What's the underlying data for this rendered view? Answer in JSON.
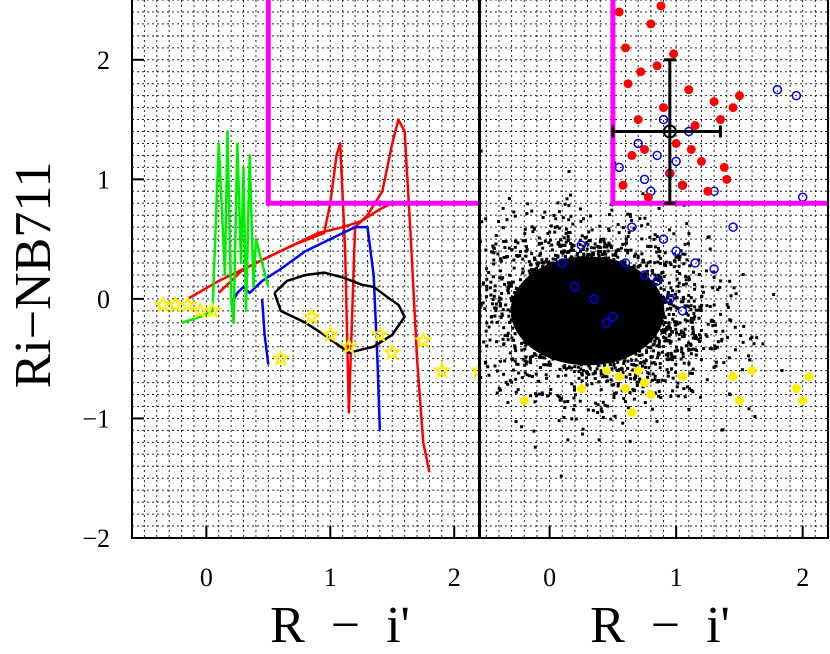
{
  "chart_data": [
    {
      "type": "line",
      "panel": "left",
      "xlabel": "R - i'",
      "ylabel": "Ri-NB711",
      "xlim": [
        -0.6,
        2.2
      ],
      "ylim": [
        -2,
        2.5
      ],
      "xticks": [
        "0",
        "1",
        "2"
      ],
      "yticks": [
        "-2",
        "-1",
        "0",
        "1",
        "2"
      ],
      "grid": true,
      "selection_box": {
        "x_min": 0.5,
        "y_min": 0.8,
        "color": "#ff00ff"
      },
      "series": [
        {
          "kind": "line",
          "color": "#ff0000",
          "x": [
            -0.15,
            0.1,
            0.4,
            0.7,
            0.95,
            1.0,
            1.05,
            1.08,
            1.12,
            1.15,
            1.2,
            1.3,
            1.42,
            1.5,
            1.55,
            1.6,
            1.65,
            1.7,
            1.75,
            1.8
          ],
          "y": [
            0.0,
            0.15,
            0.3,
            0.45,
            0.55,
            0.8,
            1.2,
            1.3,
            0.4,
            -0.95,
            0.6,
            0.7,
            0.9,
            1.3,
            1.5,
            1.4,
            0.5,
            -0.5,
            -1.2,
            -1.45
          ]
        },
        {
          "kind": "line",
          "color": "#ff0000",
          "x": [
            0.1,
            0.3,
            0.5,
            0.7,
            0.9,
            1.1,
            1.25,
            1.4,
            1.5
          ],
          "y": [
            0.05,
            0.25,
            0.35,
            0.45,
            0.55,
            0.6,
            0.65,
            0.75,
            0.8
          ]
        },
        {
          "kind": "line",
          "color": "#0000ff",
          "x": [
            0.2,
            0.25,
            0.3,
            0.35,
            0.45,
            0.6,
            0.8,
            1.0,
            1.2,
            1.3,
            1.35,
            1.38,
            1.4
          ],
          "y": [
            -0.05,
            0.05,
            0.1,
            0.05,
            0.15,
            0.25,
            0.4,
            0.5,
            0.6,
            0.6,
            0.2,
            -0.5,
            -1.1
          ]
        },
        {
          "kind": "line",
          "color": "#0000ff",
          "x": [
            0.45,
            0.47,
            0.5
          ],
          "y": [
            0.0,
            -0.3,
            -0.55
          ]
        },
        {
          "kind": "line",
          "color": "#00ee00",
          "x": [
            -0.2,
            -0.05,
            0.05,
            0.1,
            0.15,
            0.17,
            0.2,
            0.22,
            0.25,
            0.28,
            0.3,
            0.32,
            0.35,
            0.38,
            0.4,
            0.45,
            0.5
          ],
          "y": [
            -0.2,
            -0.15,
            -0.1,
            1.3,
            0.2,
            1.4,
            0.0,
            -0.2,
            1.3,
            0.3,
            1.1,
            -0.1,
            1.2,
            0.1,
            0.5,
            0.3,
            0.1
          ]
        },
        {
          "kind": "line",
          "color": "#000000",
          "x": [
            0.55,
            0.65,
            0.8,
            0.95,
            1.1,
            1.25,
            1.35,
            1.48,
            1.55,
            1.6,
            1.5,
            1.35,
            1.15,
            0.95,
            0.8,
            0.6,
            0.55
          ],
          "y": [
            0.05,
            0.15,
            0.2,
            0.22,
            0.18,
            0.12,
            0.1,
            0.0,
            -0.05,
            -0.15,
            -0.3,
            -0.4,
            -0.45,
            -0.3,
            -0.2,
            -0.1,
            0.05
          ]
        },
        {
          "kind": "stars",
          "color": "#ffee00",
          "x": [
            -0.35,
            -0.25,
            -0.15,
            -0.05,
            0.05,
            0.6,
            0.85,
            1.0,
            1.15,
            1.4,
            1.5,
            1.75,
            1.9,
            2.2
          ],
          "y": [
            -0.05,
            -0.05,
            -0.05,
            -0.1,
            -0.1,
            -0.5,
            -0.15,
            -0.3,
            -0.4,
            -0.3,
            -0.45,
            -0.35,
            -0.6,
            -0.6
          ]
        }
      ]
    },
    {
      "type": "scatter",
      "panel": "right",
      "xlabel": "R - i'",
      "xlim": [
        -0.55,
        2.2
      ],
      "ylim": [
        -2,
        2.5
      ],
      "xticks": [
        "0",
        "1",
        "2"
      ],
      "grid": true,
      "selection_box": {
        "x_min": 0.5,
        "y_min": 0.8,
        "color": "#ff00ff"
      },
      "error_bar": {
        "x": 0.95,
        "y": 1.4,
        "x_low": 0.5,
        "x_high": 1.35,
        "y_low": 0.8,
        "y_high": 2.0
      },
      "series": [
        {
          "kind": "cloud",
          "color": "#000000",
          "center_x": 0.35,
          "center_y": -0.1,
          "spread_x": 0.45,
          "spread_y": 0.35
        },
        {
          "kind": "circles",
          "color": "#0000ff",
          "x": [
            0.55,
            0.7,
            0.75,
            0.8,
            0.85,
            0.9,
            0.95,
            1.0,
            1.05,
            1.1,
            0.65,
            0.9,
            1.3,
            1.45,
            1.8,
            1.95,
            2.0,
            0.1,
            0.2,
            0.35,
            0.5,
            0.6,
            0.75,
            0.85,
            1.0,
            1.15,
            1.3,
            0.95,
            1.05,
            0.45,
            0.25
          ],
          "y": [
            1.1,
            1.3,
            1.0,
            0.9,
            1.2,
            1.5,
            1.05,
            1.15,
            0.95,
            1.4,
            0.6,
            0.5,
            0.9,
            0.6,
            1.75,
            1.7,
            0.85,
            0.3,
            0.1,
            0.0,
            -0.15,
            0.3,
            0.2,
            0.15,
            0.4,
            0.3,
            0.25,
            0.0,
            -0.1,
            -0.2,
            0.45
          ]
        },
        {
          "kind": "dots",
          "color": "#ff0000",
          "x": [
            0.55,
            0.6,
            0.62,
            0.7,
            0.75,
            0.8,
            0.85,
            0.9,
            0.95,
            1.0,
            1.05,
            1.1,
            1.15,
            1.2,
            1.25,
            1.3,
            1.35,
            1.4,
            1.5,
            0.65,
            0.72,
            0.78,
            0.88,
            1.45,
            0.58,
            0.98,
            1.12,
            1.38
          ],
          "y": [
            2.4,
            2.1,
            1.8,
            1.5,
            1.25,
            2.3,
            1.95,
            1.6,
            1.05,
            1.3,
            0.95,
            1.75,
            1.45,
            1.15,
            0.9,
            1.65,
            1.5,
            1.0,
            1.7,
            1.2,
            1.9,
            0.85,
            2.45,
            1.6,
            0.95,
            2.05,
            1.25,
            1.1
          ]
        },
        {
          "kind": "dots",
          "color": "#ffee00",
          "x": [
            -0.2,
            0.25,
            0.45,
            0.55,
            0.6,
            0.65,
            0.7,
            0.75,
            0.8,
            1.05,
            1.45,
            1.5,
            1.6,
            1.95,
            2.0,
            2.05
          ],
          "y": [
            -0.85,
            -0.75,
            -0.6,
            -0.65,
            -0.75,
            -0.95,
            -0.6,
            -0.7,
            -0.8,
            -0.65,
            -0.65,
            -0.85,
            -0.6,
            -0.75,
            -0.85,
            -0.65
          ]
        }
      ]
    }
  ]
}
